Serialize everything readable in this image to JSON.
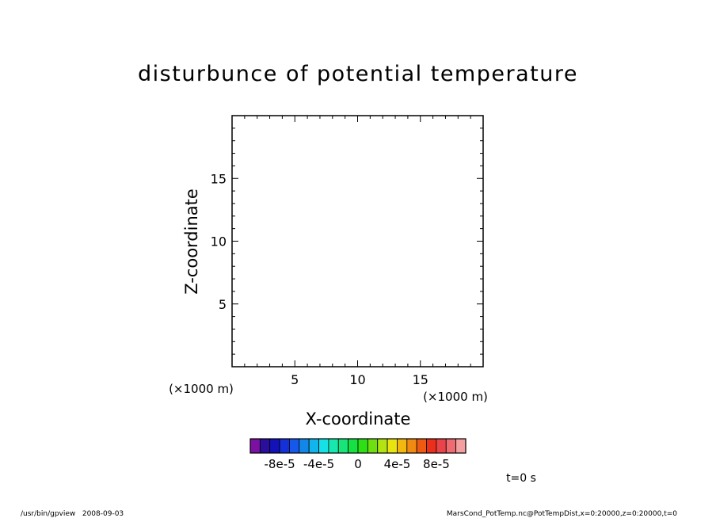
{
  "chart_data": {
    "type": "heatmap",
    "title": "disturbunce of potential temperature",
    "xlabel": "X-coordinate",
    "ylabel": "Z-coordinate",
    "x_unit": "(×1000 m)",
    "z_unit": "(×1000 m)",
    "xlim": [
      0,
      20
    ],
    "ylim": [
      0,
      20
    ],
    "xticks": [
      5,
      10,
      15
    ],
    "yticks": [
      5,
      10,
      15
    ],
    "grid": false,
    "values": [],
    "colorbar": {
      "colors": [
        "#7a11a0",
        "#2a0e9c",
        "#1212b8",
        "#1630d8",
        "#1558ea",
        "#1387e8",
        "#12b4ec",
        "#15e1e6",
        "#17e8b0",
        "#17e57a",
        "#15e242",
        "#2ddf14",
        "#6ee012",
        "#b2e411",
        "#e8e40f",
        "#f2b80f",
        "#f08a10",
        "#ee5a12",
        "#ea2f1b",
        "#e8444a",
        "#ee6b72",
        "#f4a0a0"
      ],
      "tick_labels": [
        "-8e-5",
        "-4e-5",
        "0",
        "4e-5",
        "8e-5"
      ],
      "tick_values": [
        -8e-05,
        -4e-05,
        0,
        4e-05,
        8e-05
      ]
    },
    "time_label": "t=0 s"
  },
  "footer": {
    "left": "/usr/bin/gpview   2008-09-03",
    "right": "MarsCond_PotTemp.nc@PotTempDist,x=0:20000,z=0:20000,t=0"
  }
}
